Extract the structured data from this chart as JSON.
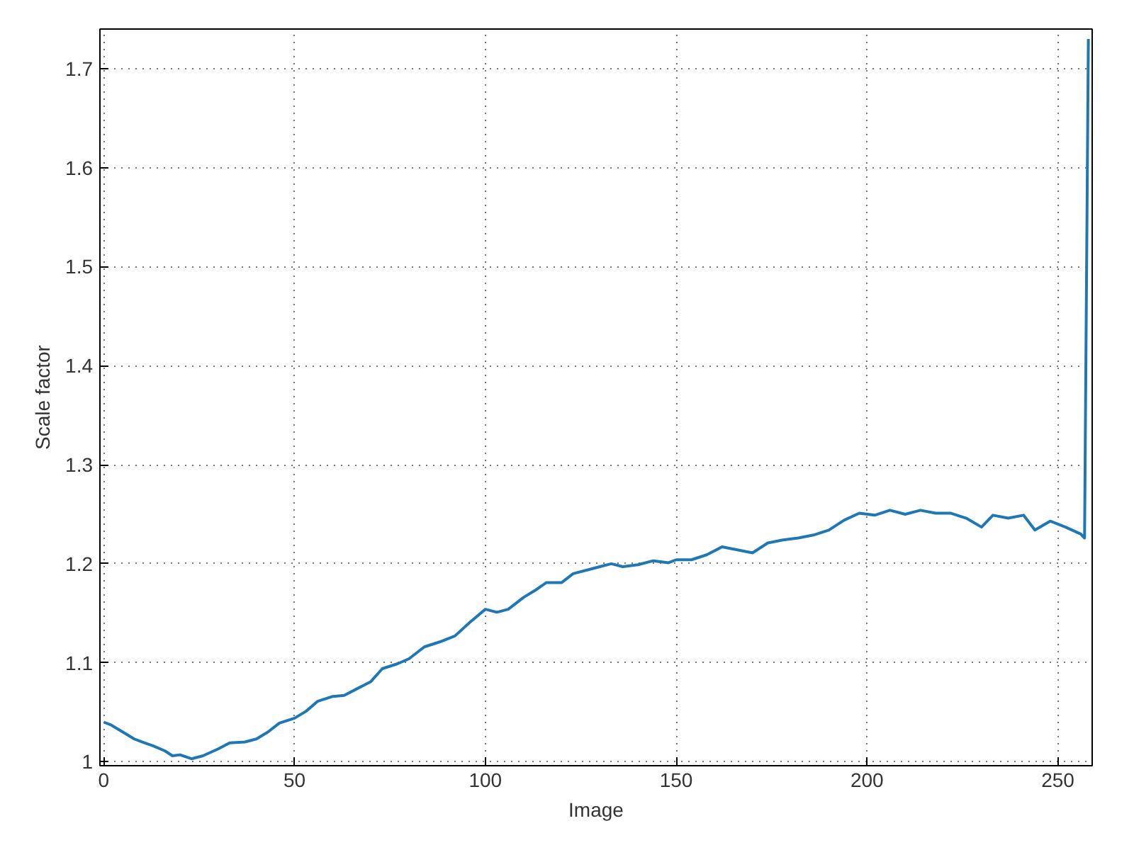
{
  "chart_data": {
    "type": "line",
    "xlabel": "Image",
    "ylabel": "Scale factor",
    "xlim": [
      -1,
      259
    ],
    "ylim": [
      0.996,
      1.74
    ],
    "xticks": [
      0,
      50,
      100,
      150,
      200,
      250
    ],
    "yticks": [
      1,
      1.1,
      1.2,
      1.3,
      1.4,
      1.5,
      1.6,
      1.7
    ],
    "grid": true,
    "line_style": "solid",
    "series": [
      {
        "color": "#1f77b4",
        "x": [
          0,
          2,
          5,
          8,
          10,
          13,
          16,
          18,
          20,
          23,
          26,
          30,
          33,
          37,
          40,
          43,
          46,
          50,
          53,
          56,
          60,
          63,
          66,
          70,
          73,
          77,
          80,
          84,
          88,
          92,
          96,
          100,
          103,
          106,
          110,
          113,
          116,
          120,
          123,
          127,
          130,
          133,
          136,
          140,
          144,
          148,
          150,
          154,
          158,
          162,
          166,
          170,
          174,
          178,
          182,
          186,
          190,
          194,
          198,
          202,
          206,
          210,
          214,
          218,
          222,
          226,
          230,
          233,
          237,
          241,
          244,
          248,
          252,
          256,
          257,
          258
        ],
        "values": [
          1.04,
          1.037,
          1.03,
          1.023,
          1.02,
          1.016,
          1.011,
          1.006,
          1.007,
          1.003,
          1.006,
          1.013,
          1.019,
          1.02,
          1.023,
          1.03,
          1.039,
          1.044,
          1.051,
          1.061,
          1.066,
          1.067,
          1.073,
          1.081,
          1.094,
          1.099,
          1.104,
          1.116,
          1.121,
          1.127,
          1.141,
          1.154,
          1.151,
          1.154,
          1.166,
          1.173,
          1.181,
          1.181,
          1.19,
          1.194,
          1.197,
          1.2,
          1.197,
          1.199,
          1.203,
          1.201,
          1.204,
          1.204,
          1.209,
          1.217,
          1.214,
          1.211,
          1.221,
          1.224,
          1.226,
          1.229,
          1.234,
          1.244,
          1.251,
          1.249,
          1.254,
          1.25,
          1.254,
          1.251,
          1.251,
          1.246,
          1.237,
          1.249,
          1.246,
          1.249,
          1.234,
          1.243,
          1.237,
          1.23,
          1.226,
          1.73
        ]
      }
    ]
  }
}
